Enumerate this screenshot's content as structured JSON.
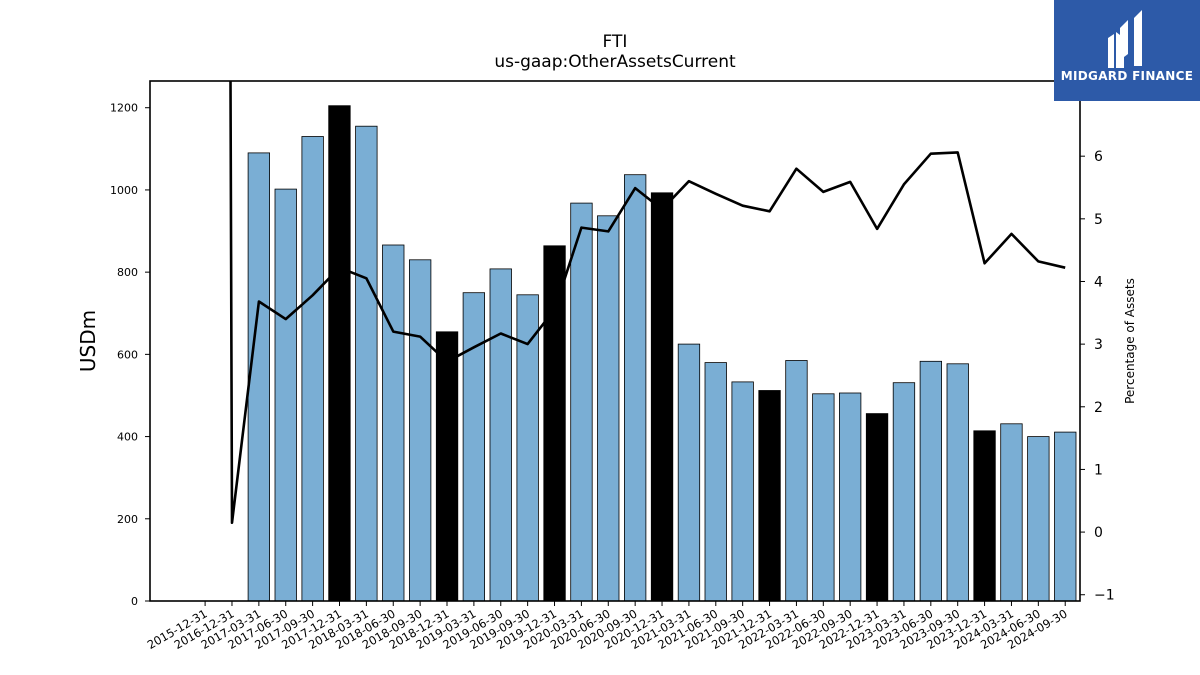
{
  "brand": {
    "name": "MIDGARD FINANCE",
    "icon": "midgard-logo-icon",
    "color": "#2d5aa8"
  },
  "chart_data": {
    "type": "bar",
    "title": "FTI",
    "subtitle": "us-gaap:OtherAssetsCurrent",
    "ylabel": "USDm",
    "y2label": "Percentage of Assets",
    "ylim": [
      0,
      1265
    ],
    "y2lim": [
      -1.1,
      7.2
    ],
    "yticks": [
      0,
      200,
      400,
      600,
      800,
      1000,
      1200
    ],
    "y2ticks": [
      -1,
      0,
      1,
      2,
      3,
      4,
      5,
      6
    ],
    "grid": false,
    "colors": {
      "bar": "#7aaed4",
      "bar_q4": "#000000",
      "line": "#000000"
    },
    "categories": [
      "2015-12-31",
      "2016-12-31",
      "2017-03-31",
      "2017-06-30",
      "2017-09-30",
      "2017-12-31",
      "2018-03-31",
      "2018-06-30",
      "2018-09-30",
      "2018-12-31",
      "2019-03-31",
      "2019-06-30",
      "2019-09-30",
      "2019-12-31",
      "2020-03-31",
      "2020-06-30",
      "2020-09-30",
      "2020-12-31",
      "2021-03-31",
      "2021-06-30",
      "2021-09-30",
      "2021-12-31",
      "2022-03-31",
      "2022-06-30",
      "2022-09-30",
      "2022-12-31",
      "2023-03-31",
      "2023-06-30",
      "2023-09-30",
      "2023-12-31",
      "2024-03-31",
      "2024-06-30",
      "2024-09-30"
    ],
    "series": [
      {
        "kind": "bar",
        "axis": "left",
        "values": [
          null,
          null,
          1090,
          1002,
          1130,
          1205,
          1155,
          866,
          830,
          655,
          750,
          808,
          745,
          864,
          968,
          937,
          1037,
          993,
          625,
          580,
          533,
          512,
          585,
          504,
          506,
          456,
          531,
          583,
          577,
          414,
          431,
          400,
          411
        ]
      },
      {
        "kind": "line",
        "axis": "right",
        "values": [
          null,
          0.15,
          3.68,
          3.4,
          3.78,
          4.22,
          4.05,
          3.2,
          3.12,
          2.72,
          2.95,
          3.17,
          3.0,
          3.55,
          4.86,
          4.8,
          5.49,
          5.15,
          5.6,
          5.4,
          5.21,
          5.12,
          5.8,
          5.43,
          5.59,
          4.84,
          5.55,
          6.04,
          6.06,
          4.29,
          4.76,
          4.32,
          4.22
        ],
        "pre_start_value": 7.2
      }
    ]
  }
}
